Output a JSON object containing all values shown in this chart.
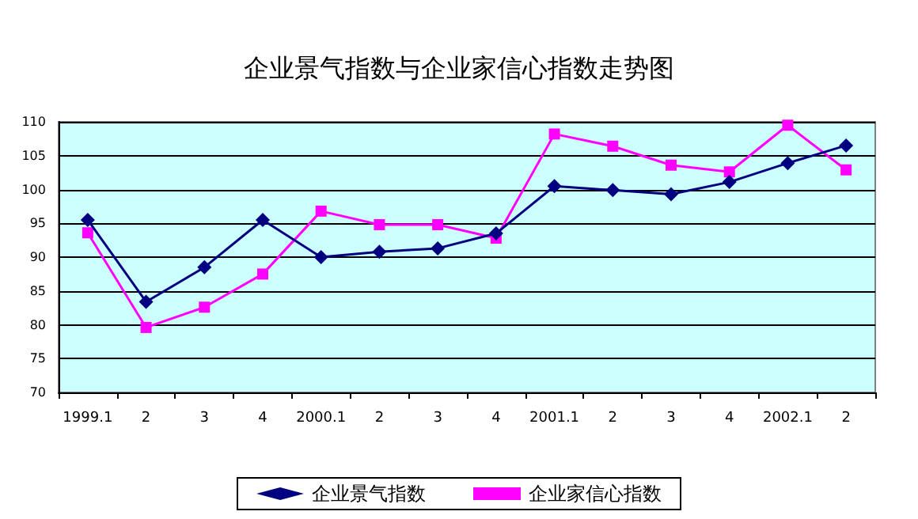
{
  "chart_data": {
    "type": "line",
    "title": "企业景气指数与企业家信心指数走势图",
    "categories": [
      "1999.1",
      "2",
      "3",
      "4",
      "2000.1",
      "2",
      "3",
      "4",
      "2001.1",
      "2",
      "3",
      "4",
      "2002.1",
      "2"
    ],
    "series": [
      {
        "name": "企业景气指数",
        "color": "#000080",
        "marker": "diamond",
        "values": [
          95.5,
          83.4,
          88.5,
          95.5,
          90.0,
          90.8,
          91.3,
          93.5,
          100.5,
          99.9,
          99.3,
          101.1,
          103.9,
          106.5
        ]
      },
      {
        "name": "企业家信心指数",
        "color": "#ff00ff",
        "marker": "square",
        "values": [
          93.6,
          79.6,
          82.6,
          87.5,
          96.8,
          94.8,
          94.8,
          92.8,
          108.2,
          106.4,
          103.6,
          102.6,
          109.5,
          102.9
        ]
      }
    ],
    "ylim": [
      70,
      110
    ],
    "yticks": [
      70,
      75,
      80,
      85,
      90,
      95,
      100,
      105,
      110
    ],
    "grid": "y",
    "legend": "bottom"
  }
}
